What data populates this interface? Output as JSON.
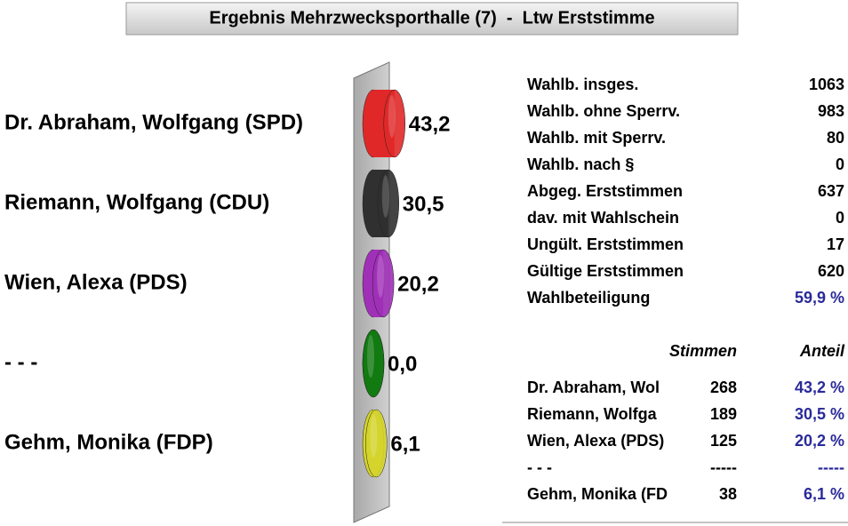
{
  "title": "Ergebnis Mehrzwecksporthalle (7)  -  Ltw Erststimme",
  "chart_data": {
    "type": "bar",
    "orientation": "horizontal",
    "categories": [
      "Dr. Abraham, Wolfgang (SPD)",
      "Riemann, Wolfgang (CDU)",
      "Wien, Alexa (PDS)",
      "- - -",
      "Gehm, Monika (FDP)"
    ],
    "values": [
      43.2,
      30.5,
      20.2,
      0,
      6.1
    ],
    "value_labels": [
      "43,2",
      "30,5",
      "20,2",
      "0,0",
      "6,1"
    ],
    "colors": [
      "#e02828",
      "#303030",
      "#a030b8",
      "#127a12",
      "#d4d42c"
    ]
  },
  "summary": {
    "rows": [
      [
        "Wahlb. insges.",
        "1063"
      ],
      [
        "Wahlb. ohne Sperrv.",
        "983"
      ],
      [
        "Wahlb. mit Sperrv.",
        "80"
      ],
      [
        "Wahlb. nach §",
        "0"
      ],
      [
        "Abgeg. Erststimmen",
        "637"
      ],
      [
        "dav. mit Wahlschein",
        "0"
      ],
      [
        "Ungült. Erststimmen",
        "17"
      ],
      [
        "Gültige Erststimmen",
        "620"
      ],
      [
        "Wahlbeteiligung",
        "59,9 %"
      ]
    ]
  },
  "results": {
    "header": [
      "Stimmen",
      "Anteil"
    ],
    "rows": [
      [
        "Dr. Abraham, Wol",
        "268",
        "43,2 %"
      ],
      [
        "Riemann, Wolfga",
        "189",
        "30,5 %"
      ],
      [
        "Wien, Alexa (PDS)",
        "125",
        "20,2 %"
      ],
      [
        "- - -",
        "-----",
        "-----"
      ],
      [
        "Gehm, Monika (FD",
        "38",
        "6,1 %"
      ]
    ]
  }
}
